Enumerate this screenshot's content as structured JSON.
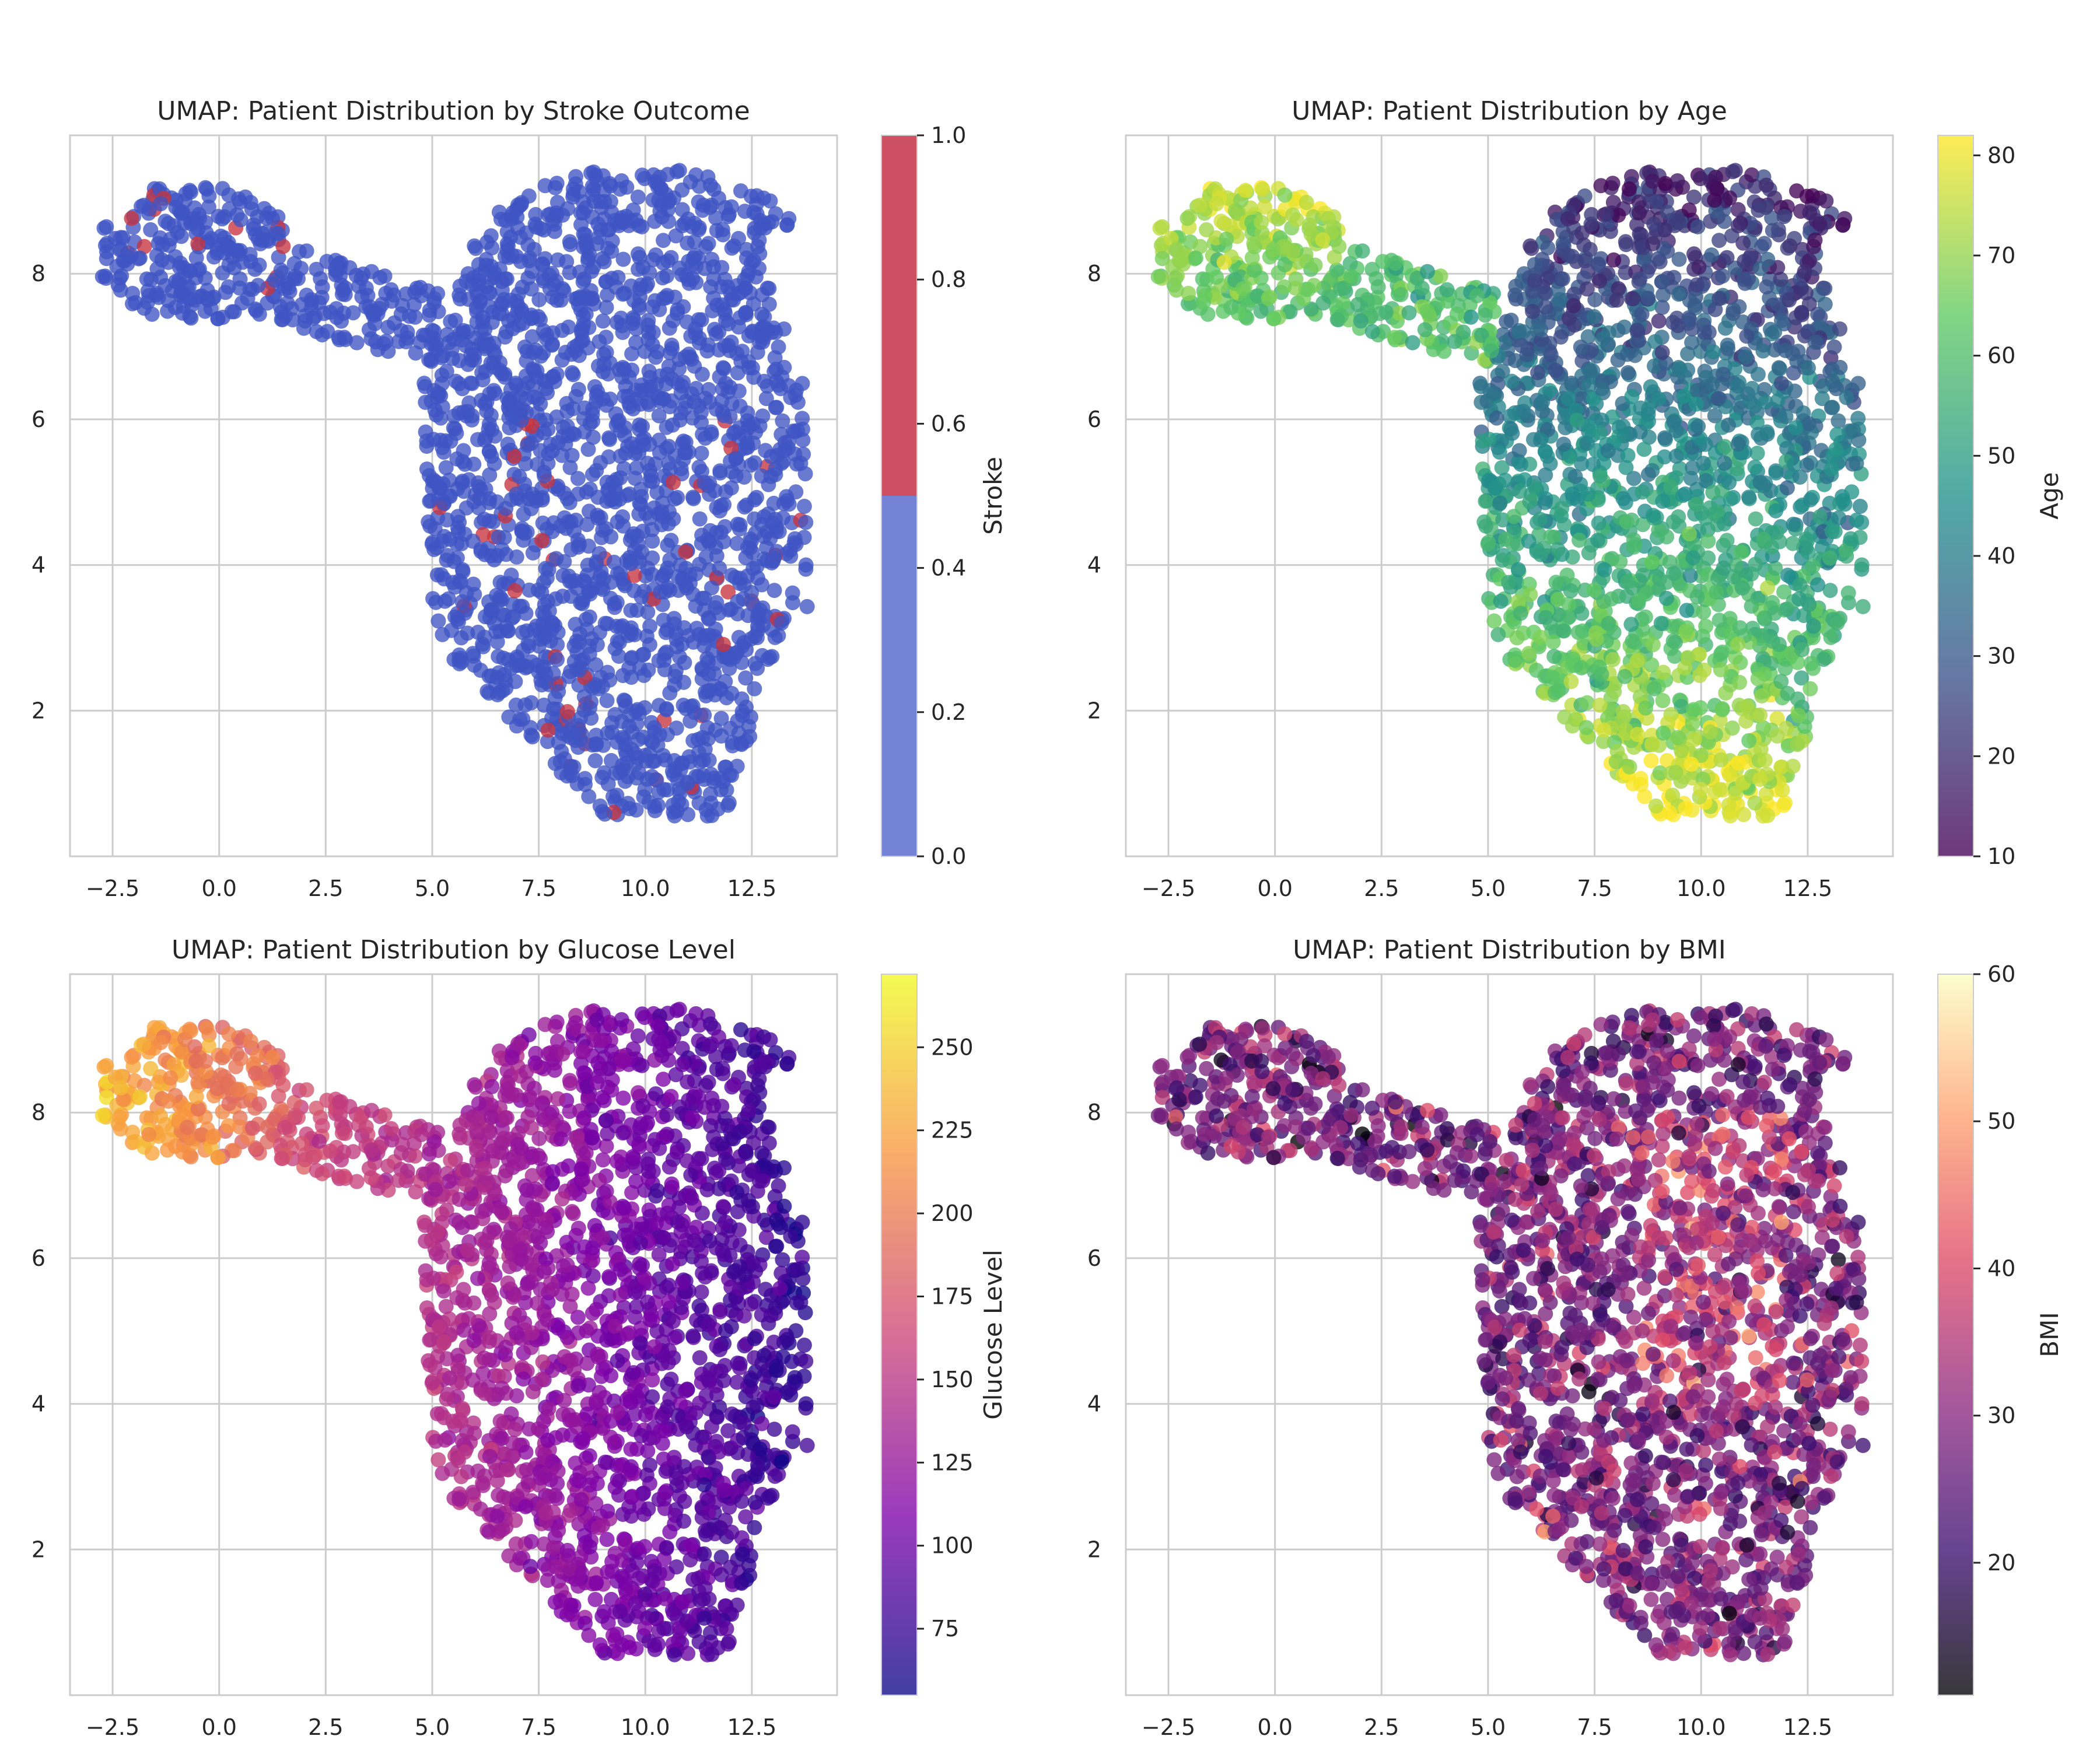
{
  "chart_data": [
    {
      "type": "scatter",
      "title": "UMAP: Patient Distribution by Stroke Outcome",
      "xlabel": "",
      "ylabel": "",
      "xlim": [
        -3.5,
        14.5
      ],
      "ylim": [
        0.0,
        9.9
      ],
      "xticks": [
        -2.5,
        0.0,
        2.5,
        5.0,
        7.5,
        10.0,
        12.5
      ],
      "yticks": [
        2,
        4,
        6,
        8
      ],
      "grid": true,
      "color_by": "stroke",
      "colorbar": {
        "label": "Stroke",
        "range": [
          0.0,
          1.0
        ],
        "ticks": [
          0.0,
          0.2,
          0.4,
          0.6,
          0.8,
          1.0
        ],
        "discrete": true,
        "colors": [
          "#7482d6",
          "#cc4f62"
        ]
      },
      "point_color_main": "#3f55c3",
      "point_color_positive": "#c7333d"
    },
    {
      "type": "scatter",
      "title": "UMAP: Patient Distribution by Age",
      "xlabel": "",
      "ylabel": "",
      "xlim": [
        -3.5,
        14.5
      ],
      "ylim": [
        0.0,
        9.9
      ],
      "xticks": [
        -2.5,
        0.0,
        2.5,
        5.0,
        7.5,
        10.0,
        12.5
      ],
      "yticks": [
        2,
        4,
        6,
        8
      ],
      "grid": true,
      "color_by": "age",
      "colorbar": {
        "label": "Age",
        "range": [
          10,
          82
        ],
        "ticks": [
          10,
          20,
          30,
          40,
          50,
          60,
          70,
          80
        ],
        "colormap": "viridis",
        "colors": [
          "#440154",
          "#3b528b",
          "#21918c",
          "#5ec962",
          "#fde725"
        ]
      }
    },
    {
      "type": "scatter",
      "title": "UMAP: Patient Distribution by Glucose Level",
      "xlabel": "",
      "ylabel": "",
      "xlim": [
        -3.5,
        14.5
      ],
      "ylim": [
        0.0,
        9.9
      ],
      "xticks": [
        -2.5,
        0.0,
        2.5,
        5.0,
        7.5,
        10.0,
        12.5
      ],
      "yticks": [
        2,
        4,
        6,
        8
      ],
      "grid": true,
      "color_by": "glucose",
      "colorbar": {
        "label": "Glucose Level",
        "range": [
          55,
          272
        ],
        "ticks": [
          75,
          100,
          125,
          150,
          175,
          200,
          225,
          250
        ],
        "colormap": "plasma",
        "colors": [
          "#0d0887",
          "#7e03a8",
          "#cc4778",
          "#f89540",
          "#f0f921"
        ]
      }
    },
    {
      "type": "scatter",
      "title": "UMAP: Patient Distribution by BMI",
      "xlabel": "",
      "ylabel": "",
      "xlim": [
        -3.5,
        14.5
      ],
      "ylim": [
        0.0,
        9.9
      ],
      "xticks": [
        -2.5,
        0.0,
        2.5,
        5.0,
        7.5,
        10.0,
        12.5
      ],
      "yticks": [
        2,
        4,
        6,
        8
      ],
      "grid": true,
      "color_by": "bmi",
      "colorbar": {
        "label": "BMI",
        "range": [
          11,
          60
        ],
        "ticks": [
          20,
          30,
          40,
          50,
          60
        ],
        "colormap": "magma",
        "colors": [
          "#000004",
          "#3b0f70",
          "#8c2981",
          "#de4968",
          "#fe9f6d",
          "#fcfdbf"
        ]
      }
    }
  ]
}
